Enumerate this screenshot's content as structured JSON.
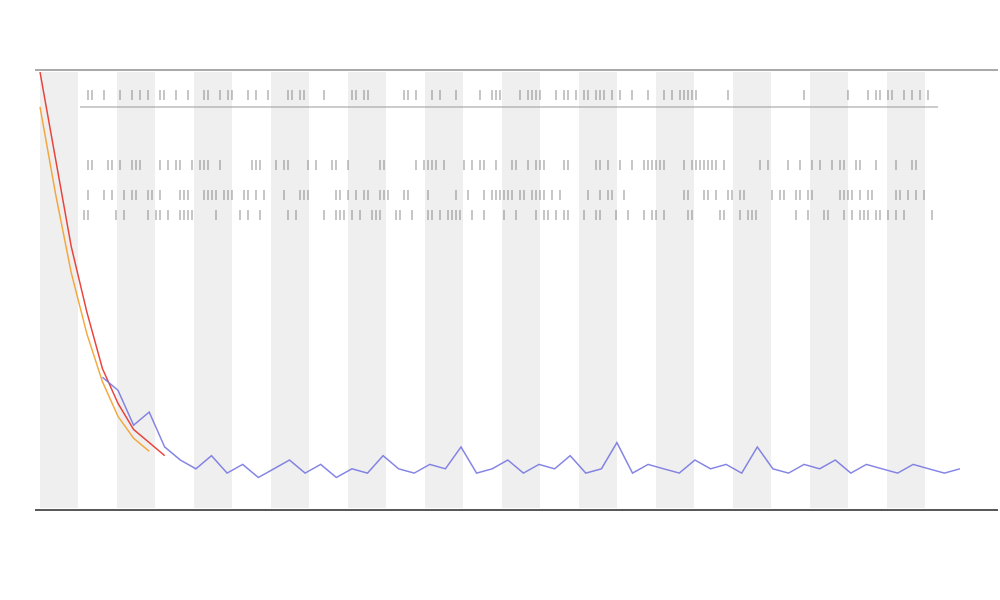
{
  "chart_data": {
    "type": "line",
    "ylim": [
      0,
      100
    ],
    "series": [
      {
        "color": "#e8231b",
        "values": [
          100,
          80,
          60,
          45,
          32,
          24,
          18,
          15,
          12,
          null,
          null,
          null,
          null,
          null,
          null,
          null,
          null,
          null,
          null,
          null,
          null,
          null,
          null,
          null,
          null,
          null,
          null,
          null,
          null,
          null,
          null,
          null,
          null,
          null,
          null,
          null,
          null,
          null,
          null,
          null,
          null,
          null,
          null,
          null,
          null,
          null,
          null,
          null,
          null,
          null,
          null,
          null,
          null,
          null,
          null,
          null,
          null,
          null,
          null,
          null
        ]
      },
      {
        "color": "#f29a1f",
        "values": [
          92,
          72,
          54,
          40,
          29,
          21,
          16,
          13,
          null,
          null,
          null,
          null,
          null,
          null,
          null,
          null,
          null,
          null,
          null,
          null,
          null,
          null,
          null,
          null,
          null,
          null,
          null,
          null,
          null,
          null,
          null,
          null,
          null,
          null,
          null,
          null,
          null,
          null,
          null,
          null,
          null,
          null,
          null,
          null,
          null,
          null,
          null,
          null,
          null,
          null,
          null,
          null,
          null,
          null,
          null,
          null,
          null,
          null,
          null,
          null
        ]
      },
      {
        "color": "#6f6fe0",
        "values": [
          null,
          null,
          null,
          null,
          30,
          27,
          19,
          22,
          14,
          11,
          9,
          12,
          8,
          10,
          7,
          9,
          11,
          8,
          10,
          7,
          9,
          8,
          12,
          9,
          8,
          10,
          9,
          14,
          8,
          9,
          11,
          8,
          10,
          9,
          12,
          8,
          9,
          15,
          8,
          10,
          9,
          8,
          11,
          9,
          10,
          8,
          14,
          9,
          8,
          10,
          9,
          11,
          8,
          10,
          9,
          8,
          10,
          9,
          8,
          9
        ]
      }
    ]
  }
}
